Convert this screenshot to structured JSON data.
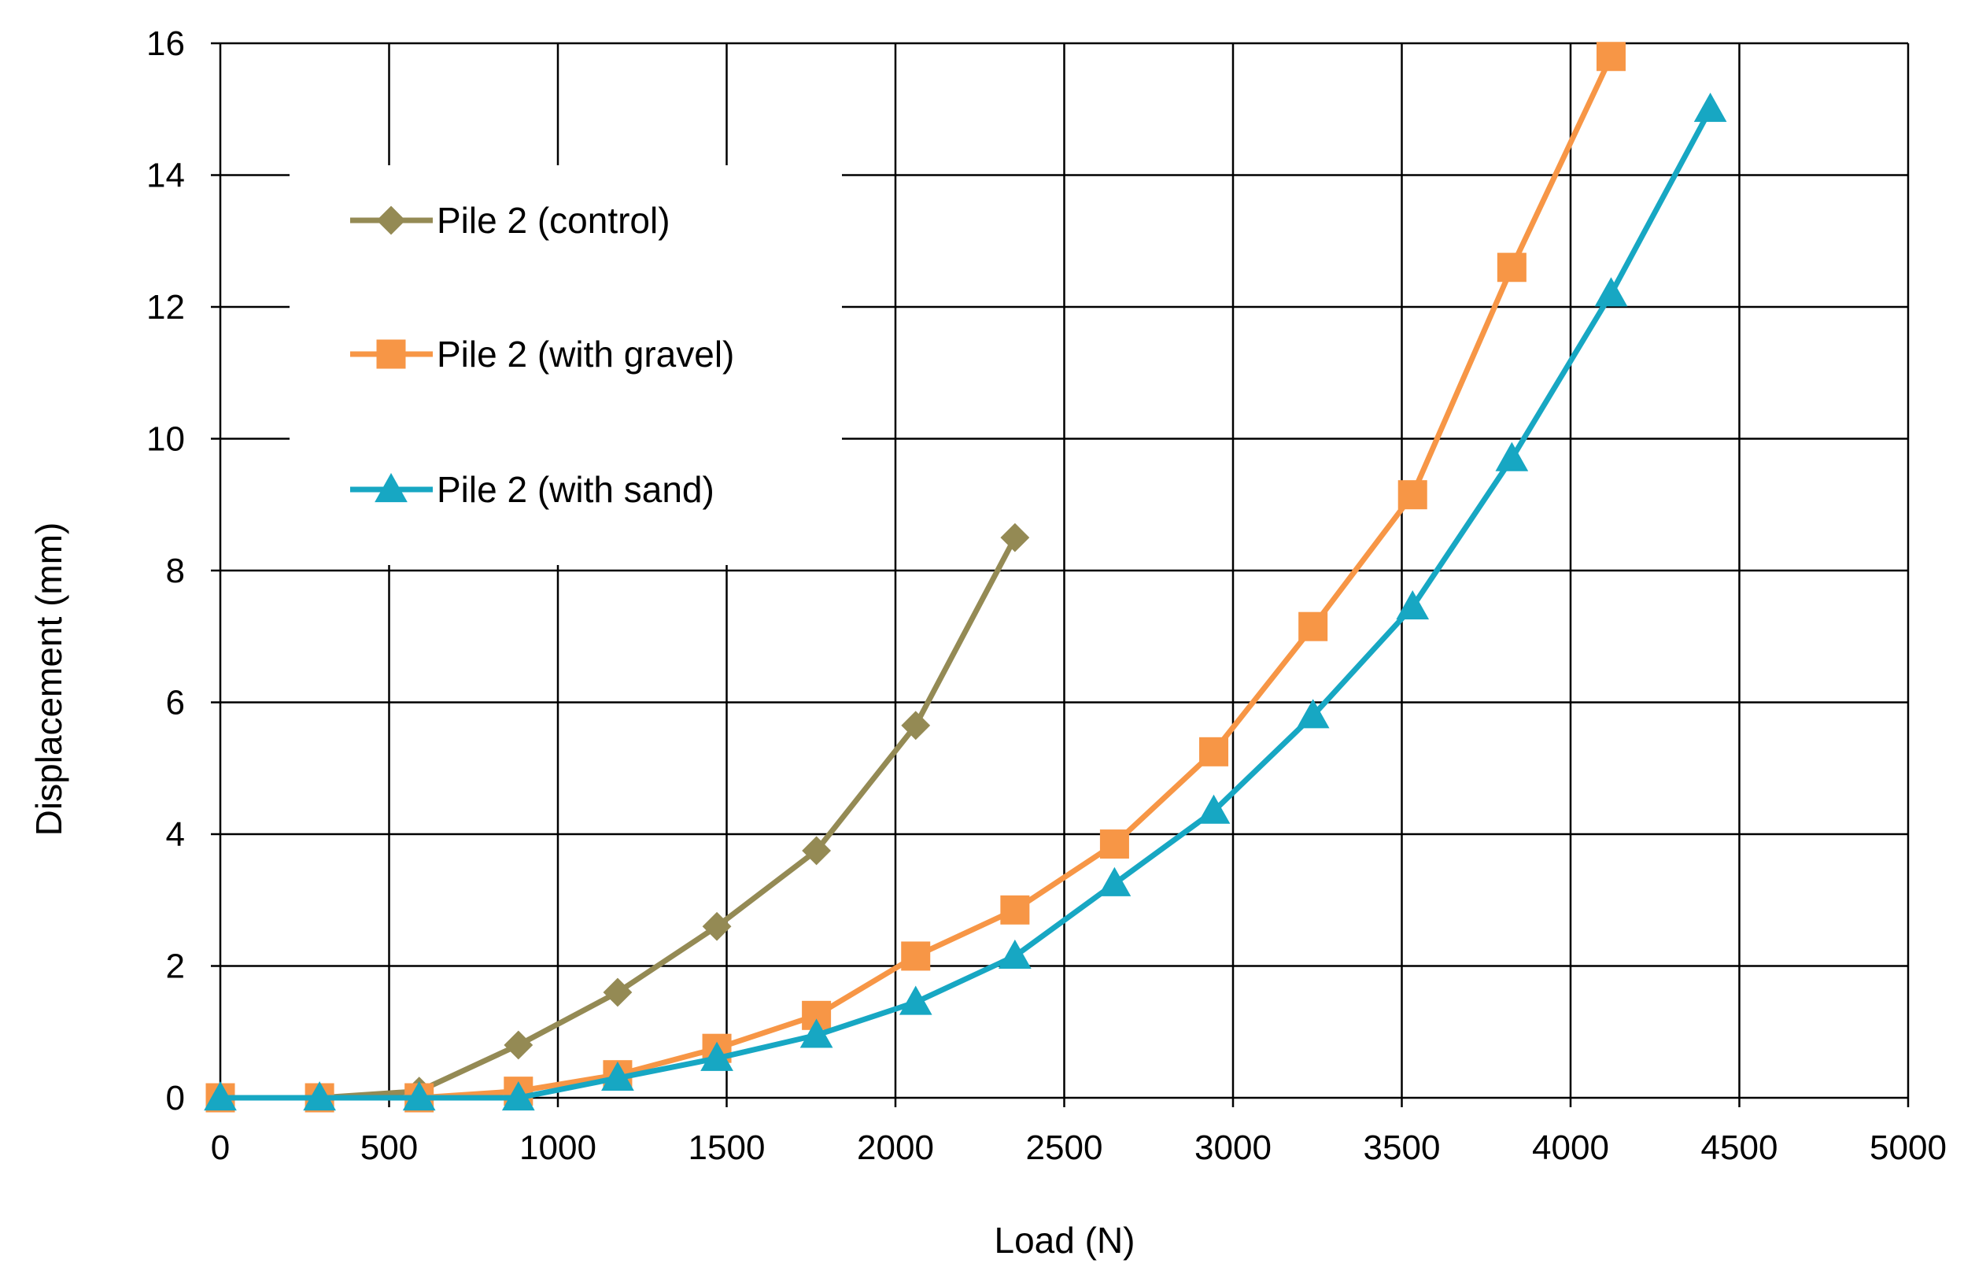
{
  "chart_data": {
    "type": "line",
    "title": "",
    "xlabel": "Load (N)",
    "ylabel": "Displacement (mm)",
    "xlim": [
      0,
      5000
    ],
    "ylim": [
      0,
      16
    ],
    "xticks": [
      0,
      500,
      1000,
      1500,
      2000,
      2500,
      3000,
      3500,
      4000,
      4500,
      5000
    ],
    "yticks": [
      0,
      2,
      4,
      6,
      8,
      10,
      12,
      14,
      16
    ],
    "grid": true,
    "legend_position": "top-left",
    "series": [
      {
        "name": "Pile 2 (control)",
        "color": "#948A54",
        "marker": "diamond",
        "x": [
          0,
          294,
          589,
          883,
          1177,
          1471,
          1766,
          2060,
          2354
        ],
        "y": [
          0,
          0,
          0.1,
          0.8,
          1.6,
          2.6,
          3.75,
          5.65,
          8.5
        ]
      },
      {
        "name": "Pile 2 (with gravel)",
        "color": "#F79646",
        "marker": "square",
        "x": [
          0,
          294,
          589,
          883,
          1177,
          1471,
          1766,
          2060,
          2354,
          2649,
          2943,
          3237,
          3532,
          3826,
          4120
        ],
        "y": [
          0,
          0,
          0,
          0.1,
          0.35,
          0.75,
          1.25,
          2.15,
          2.85,
          3.85,
          5.25,
          7.15,
          9.15,
          12.6,
          15.8
        ]
      },
      {
        "name": "Pile 2 (with sand)",
        "color": "#17A7C3",
        "marker": "triangle",
        "x": [
          0,
          294,
          589,
          883,
          1177,
          1471,
          1766,
          2060,
          2354,
          2649,
          2943,
          3237,
          3532,
          3826,
          4120,
          4414
        ],
        "y": [
          0,
          0,
          0,
          0,
          0.3,
          0.6,
          0.95,
          1.45,
          2.15,
          3.25,
          4.35,
          5.8,
          7.45,
          9.7,
          12.2,
          15.0
        ]
      }
    ]
  }
}
